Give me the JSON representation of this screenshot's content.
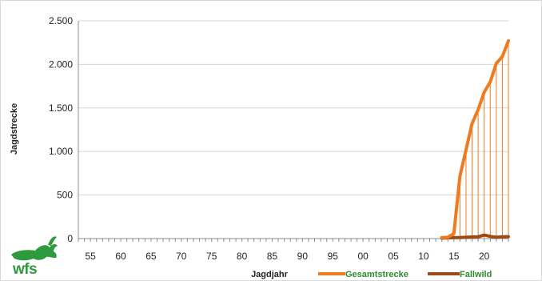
{
  "logo": {
    "text": "wfs"
  },
  "chart_data": {
    "type": "line",
    "xlabel": "Jagdjahr",
    "ylabel": "Jagdstrecke",
    "xlim": [
      1953,
      2024
    ],
    "ylim": [
      0,
      2500
    ],
    "x_ticks": [
      1955,
      1960,
      1965,
      1970,
      1975,
      1980,
      1985,
      1990,
      1995,
      2000,
      2005,
      2010,
      2015,
      2020
    ],
    "x_tick_labels": [
      "55",
      "60",
      "65",
      "70",
      "75",
      "80",
      "85",
      "90",
      "95",
      "00",
      "05",
      "10",
      "15",
      "20"
    ],
    "y_ticks": [
      0,
      500,
      1000,
      1500,
      2000,
      2500
    ],
    "y_tick_labels": [
      "0",
      "500",
      "1.000",
      "1.500",
      "2.000",
      "2.500"
    ],
    "grid": {
      "horizontal": true,
      "vertical": false
    },
    "legend": {
      "position": "bottom-right"
    },
    "drop_lines": true,
    "x": [
      2013,
      2014,
      2015,
      2016,
      2017,
      2018,
      2019,
      2020,
      2021,
      2022,
      2023,
      2024
    ],
    "series": [
      {
        "name": "Gesamtstrecke",
        "color": "#f07a1f",
        "legend_text_color": "#2e8b2e",
        "values": [
          10,
          15,
          60,
          720,
          1020,
          1320,
          1480,
          1680,
          1800,
          2010,
          2090,
          2270
        ]
      },
      {
        "name": "Fallwild",
        "color": "#9e4a14",
        "legend_text_color": "#2e8b2e",
        "values": [
          5,
          8,
          10,
          12,
          15,
          18,
          20,
          40,
          25,
          15,
          20,
          22
        ]
      }
    ]
  }
}
